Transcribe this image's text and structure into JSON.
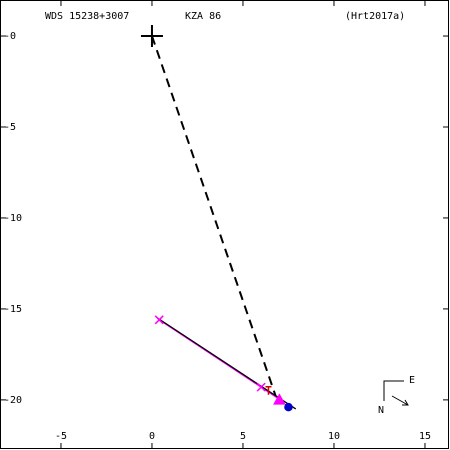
{
  "chart_data": {
    "type": "scatter",
    "title": "WDS 15238+3007",
    "subtitle": "KZA  86",
    "reference": "(Hrt2017a)",
    "compass": {
      "east": "E",
      "north": "N"
    },
    "xlim": [
      -8.35,
      16.32
    ],
    "ylim": [
      -22.7,
      1.98
    ],
    "xticks": [
      -5,
      0,
      5,
      10,
      15
    ],
    "yticks": [
      {
        "value": 0,
        "label": "-0"
      },
      -5,
      -10,
      -15,
      -20
    ],
    "primary": {
      "x": 0,
      "y": 0,
      "color": "#000000"
    },
    "lines": [
      {
        "style": "dashed",
        "color": "#000000",
        "x": [
          0,
          6.8
        ],
        "y": [
          0,
          -19.8
        ]
      },
      {
        "style": "solid",
        "color": "#ff00ff",
        "x": [
          0.4,
          7.2
        ],
        "y": [
          -15.6,
          -20.1
        ]
      },
      {
        "style": "solid",
        "color": "#000000",
        "x": [
          0.3,
          7.9
        ],
        "y": [
          -15.5,
          -20.5
        ]
      }
    ],
    "series": [
      {
        "marker": "x",
        "color": "#ff00ff",
        "x": [
          0.4,
          6.0
        ],
        "y": [
          -15.6,
          -19.3
        ]
      },
      {
        "marker": "tick",
        "color": "#cc0000",
        "x": [
          6.4
        ],
        "y": [
          -19.5
        ]
      },
      {
        "marker": "triangle",
        "color": "#ff00ff",
        "x": [
          7.0
        ],
        "y": [
          -20.0
        ]
      },
      {
        "marker": "dot",
        "color": "#0000cc",
        "x": [
          7.5
        ],
        "y": [
          -20.4
        ]
      }
    ]
  }
}
